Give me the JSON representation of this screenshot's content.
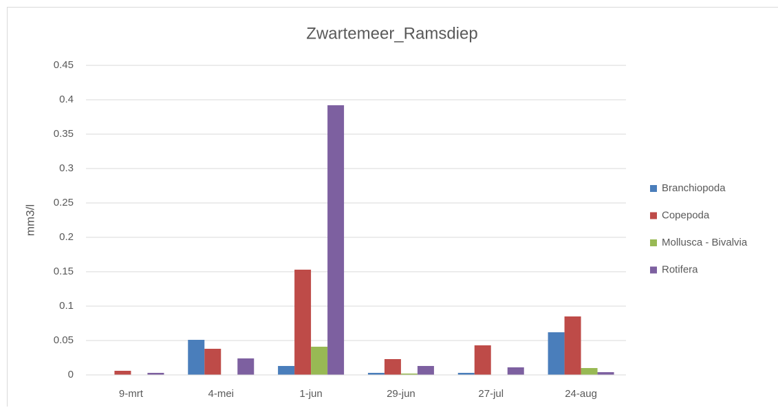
{
  "chart_data": {
    "type": "bar",
    "title": "Zwartemeer_Ramsdiep",
    "y_label": "mm3/l",
    "categories": [
      "9-mrt",
      "4-mei",
      "1-jun",
      "29-jun",
      "27-jul",
      "24-aug"
    ],
    "series": [
      {
        "name": "Branchiopoda",
        "color": "#4a7ebb",
        "values": [
          0,
          0.051,
          0.013,
          0.003,
          0.003,
          0.062
        ]
      },
      {
        "name": "Copepoda",
        "color": "#be4b48",
        "values": [
          0.006,
          0.038,
          0.153,
          0.023,
          0.043,
          0.085
        ]
      },
      {
        "name": "Mollusca - Bivalvia",
        "color": "#98b954",
        "values": [
          0,
          0,
          0.041,
          0.002,
          0,
          0.01
        ]
      },
      {
        "name": "Rotifera",
        "color": "#7d60a0",
        "values": [
          0.003,
          0.024,
          0.392,
          0.013,
          0.011,
          0.004
        ]
      }
    ],
    "ylim": [
      0,
      0.45
    ],
    "yticks": [
      0,
      0.05,
      0.1,
      0.15,
      0.2,
      0.25,
      0.3,
      0.35,
      0.4,
      0.45
    ],
    "grid": true,
    "legend": "right"
  }
}
